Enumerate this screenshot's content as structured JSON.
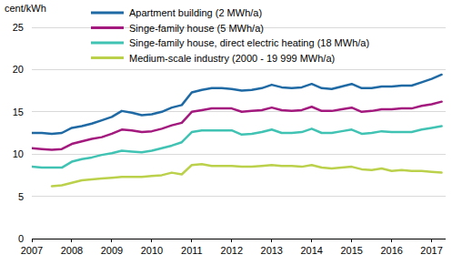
{
  "chart_data": {
    "type": "line",
    "y_label": "cent/kWh",
    "x": [
      2007,
      2007.25,
      2007.5,
      2007.75,
      2008,
      2008.25,
      2008.5,
      2008.75,
      2009,
      2009.25,
      2009.5,
      2009.75,
      2010,
      2010.25,
      2010.5,
      2010.75,
      2011,
      2011.25,
      2011.5,
      2011.75,
      2012,
      2012.25,
      2012.5,
      2012.75,
      2013,
      2013.25,
      2013.5,
      2013.75,
      2014,
      2014.25,
      2014.5,
      2014.75,
      2015,
      2015.25,
      2015.5,
      2015.75,
      2016,
      2016.25,
      2016.5,
      2016.75,
      2017,
      2017.25
    ],
    "series": [
      {
        "name": "Apartment building (2 MWh/a)",
        "color": "#1f6aa5",
        "values": [
          12.5,
          12.5,
          12.4,
          12.5,
          13.1,
          13.3,
          13.6,
          14.0,
          14.4,
          15.1,
          14.9,
          14.6,
          14.7,
          15.0,
          15.5,
          15.8,
          17.3,
          17.6,
          17.8,
          17.8,
          17.7,
          17.5,
          17.6,
          17.8,
          18.2,
          17.9,
          17.8,
          17.9,
          18.3,
          17.8,
          17.7,
          18.0,
          18.3,
          17.8,
          17.8,
          18.0,
          18.0,
          18.1,
          18.1,
          18.5,
          18.9,
          19.4
        ]
      },
      {
        "name": "Singe-family house (5 MWh/a)",
        "color": "#a3197e",
        "values": [
          10.7,
          10.6,
          10.5,
          10.6,
          11.2,
          11.5,
          11.8,
          12.0,
          12.4,
          12.9,
          12.8,
          12.6,
          12.7,
          13.0,
          13.4,
          13.7,
          15.0,
          15.2,
          15.4,
          15.4,
          15.4,
          15.0,
          15.1,
          15.2,
          15.5,
          15.2,
          15.1,
          15.2,
          15.6,
          15.1,
          15.1,
          15.3,
          15.5,
          15.0,
          15.1,
          15.3,
          15.3,
          15.4,
          15.4,
          15.7,
          15.9,
          16.2
        ]
      },
      {
        "name": "Singe-family house, direct electric heating (18 MWh/a)",
        "color": "#41c3b4",
        "values": [
          8.5,
          8.4,
          8.4,
          8.4,
          9.1,
          9.4,
          9.6,
          9.9,
          10.1,
          10.4,
          10.3,
          10.2,
          10.4,
          10.7,
          11.0,
          11.4,
          12.6,
          12.8,
          12.8,
          12.8,
          12.8,
          12.3,
          12.4,
          12.6,
          12.9,
          12.5,
          12.5,
          12.6,
          13.0,
          12.5,
          12.5,
          12.7,
          12.9,
          12.4,
          12.5,
          12.7,
          12.6,
          12.6,
          12.6,
          12.9,
          13.1,
          13.3
        ]
      },
      {
        "name": "Medium-scale industry (2000 - 19 999 MWh/a)",
        "color": "#bcd14b",
        "values": [
          null,
          null,
          6.2,
          6.3,
          6.6,
          6.9,
          7.0,
          7.1,
          7.2,
          7.3,
          7.3,
          7.3,
          7.4,
          7.5,
          7.8,
          7.6,
          8.7,
          8.8,
          8.6,
          8.6,
          8.6,
          8.5,
          8.5,
          8.6,
          8.7,
          8.6,
          8.6,
          8.5,
          8.7,
          8.4,
          8.3,
          8.4,
          8.5,
          8.2,
          8.1,
          8.3,
          8.0,
          8.1,
          8.0,
          8.0,
          7.9,
          7.8
        ]
      }
    ],
    "xlim": [
      2007,
      2017.35
    ],
    "xticks": [
      2007,
      2008,
      2009,
      2010,
      2011,
      2012,
      2013,
      2014,
      2015,
      2016,
      2017
    ],
    "ylim": [
      0,
      25
    ],
    "yticks": [
      0,
      5,
      10,
      15,
      20,
      25
    ],
    "grid": true,
    "legend": "top-left"
  }
}
